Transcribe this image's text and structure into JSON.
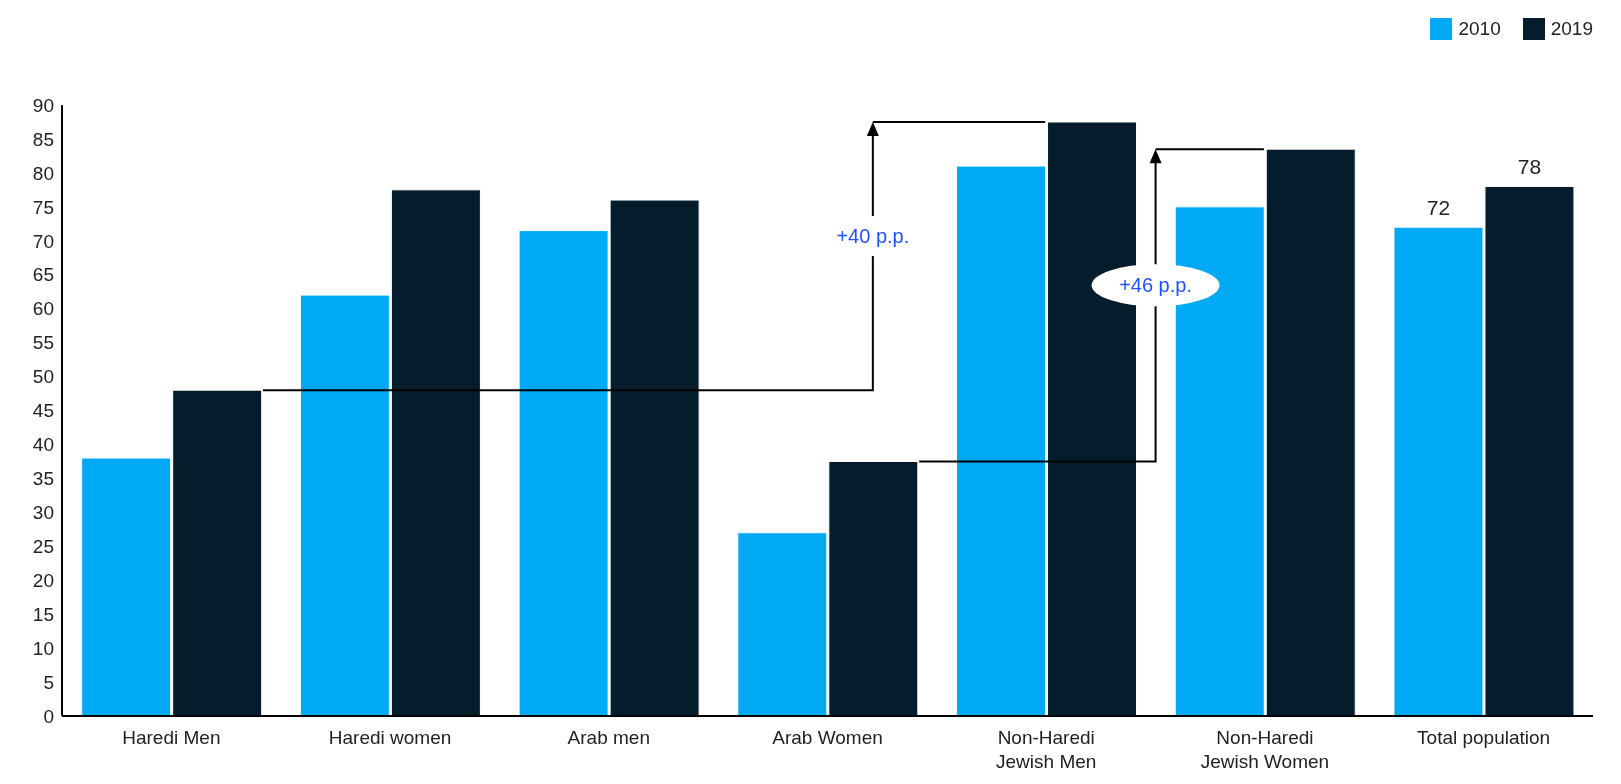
{
  "chart_data": {
    "type": "bar",
    "categories": [
      "Haredi Men",
      "Haredi women",
      "Arab men",
      "Arab Women",
      "Non-Haredi Jewish Men",
      "Non-Haredi Jewish Women",
      "Total population"
    ],
    "series": [
      {
        "name": "2010",
        "color": "#00a9f4",
        "values": [
          38,
          62,
          71.5,
          27,
          81,
          75,
          72
        ],
        "value_labels": [
          null,
          null,
          null,
          null,
          null,
          null,
          "72"
        ]
      },
      {
        "name": "2019",
        "color": "#051c2c",
        "values": [
          48,
          77.5,
          76,
          37.5,
          87.5,
          83.5,
          78
        ],
        "value_labels": [
          null,
          null,
          null,
          null,
          null,
          null,
          "78"
        ]
      }
    ],
    "ylim": [
      0,
      90
    ],
    "yticks": [
      0,
      5,
      10,
      15,
      20,
      25,
      30,
      35,
      40,
      45,
      50,
      55,
      60,
      65,
      70,
      75,
      80,
      85,
      90
    ],
    "grid": false,
    "legend": "top right",
    "annotations": [
      "+40 p.p.",
      "+46 p.p."
    ]
  }
}
